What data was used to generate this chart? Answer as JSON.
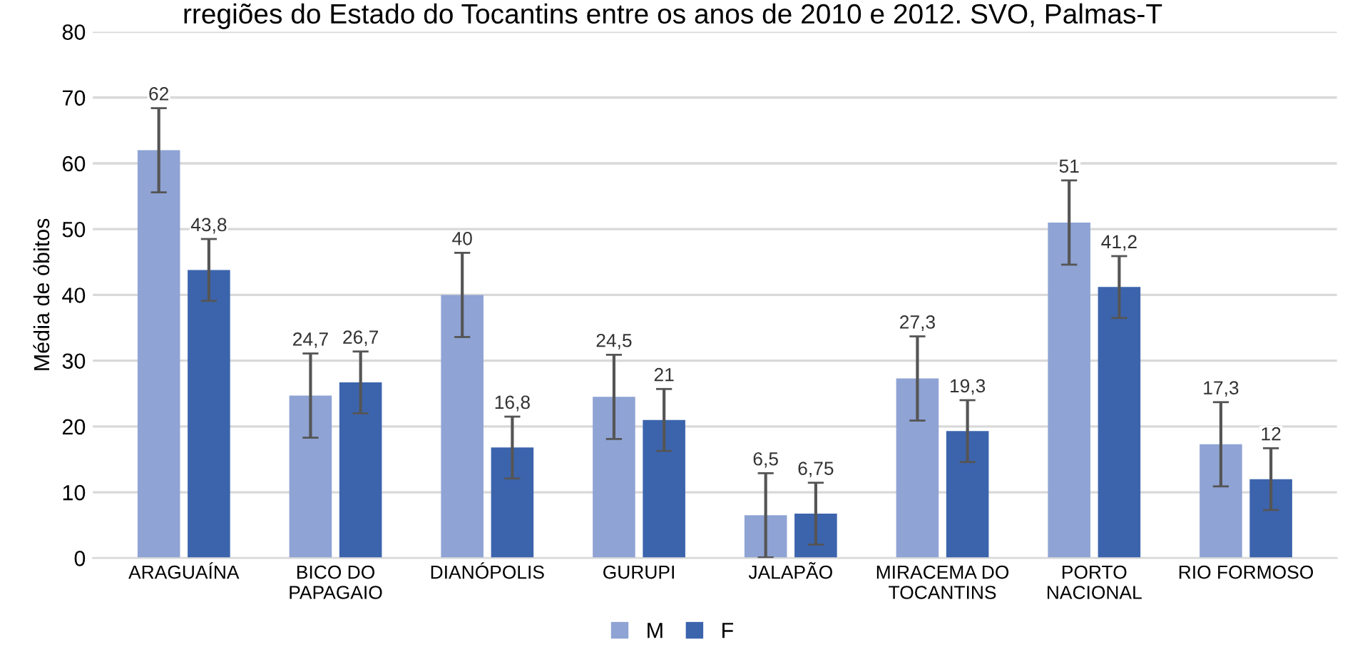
{
  "chart_data": {
    "type": "bar",
    "title": "rregiões do Estado do Tocantins entre os anos de 2010 e 2012. SVO, Palmas-T",
    "ylabel": "Média de óbitos",
    "categories": [
      "ARAGUAÍNA",
      "BICO DO\nPAPAGAIO",
      "DIANÓPOLIS",
      "GURUPI",
      "JALAPÃO",
      "MIRACEMA DO\nTOCANTINS",
      "PORTO\nNACIONAL",
      "RIO FORMOSO"
    ],
    "series": [
      {
        "name": "M",
        "color": "#8fa3d4",
        "values": [
          62,
          24.7,
          40,
          24.5,
          6.5,
          27.3,
          51,
          17.3
        ],
        "errors": [
          6.4,
          6.4,
          6.4,
          6.4,
          6.4,
          6.4,
          6.4,
          6.4
        ],
        "value_labels": [
          "62",
          "24,7",
          "40",
          "24,5",
          "6,5",
          "27,3",
          "51",
          "17,3"
        ]
      },
      {
        "name": "F",
        "color": "#3c64ad",
        "values": [
          43.8,
          26.7,
          16.8,
          21,
          6.75,
          19.3,
          41.2,
          12
        ],
        "errors": [
          4.7,
          4.7,
          4.7,
          4.7,
          4.7,
          4.7,
          4.7,
          4.7
        ],
        "value_labels": [
          "43,8",
          "26,7",
          "16,8",
          "21",
          "6,75",
          "19,3",
          "41,2",
          "12"
        ]
      }
    ],
    "ylim": [
      0,
      80
    ],
    "yticks": [
      0,
      10,
      20,
      30,
      40,
      50,
      60,
      70,
      80
    ],
    "grid": "y",
    "legend": "bottom"
  }
}
